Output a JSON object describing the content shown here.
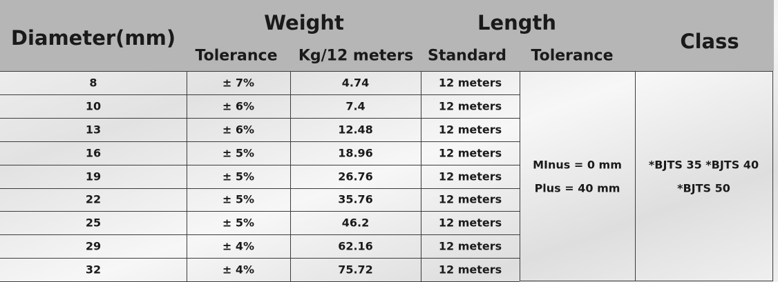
{
  "header": {
    "diameter": "Diameter(mm)",
    "weight": "Weight",
    "length": "Length",
    "class": "Class",
    "weight_tolerance": "Tolerance",
    "weight_kg": "Kg/12 meters",
    "length_standard": "Standard",
    "length_tolerance": "Tolerance"
  },
  "table": {
    "rows": [
      [
        8,
        "± 7%",
        4.74,
        "12 meters"
      ],
      [
        10,
        "± 6%",
        7.4,
        "12 meters"
      ],
      [
        13,
        "± 6%",
        12.48,
        "12 meters"
      ],
      [
        16,
        "± 5%",
        18.96,
        "12 meters"
      ],
      [
        19,
        "± 5%",
        26.76,
        "12 meters"
      ],
      [
        22,
        "± 5%",
        35.76,
        "12 meters"
      ],
      [
        25,
        "± 5%",
        46.2,
        "12 meters"
      ],
      [
        29,
        "± 4%",
        62.16,
        "12 meters"
      ],
      [
        32,
        "± 4%",
        75.72,
        "12 meters"
      ]
    ],
    "length_tolerance": [
      "MInus = 0 mm",
      "Plus = 40 mm"
    ],
    "class": [
      "*BJTS 35 *BJTS 40",
      "*BJTS 50"
    ]
  }
}
